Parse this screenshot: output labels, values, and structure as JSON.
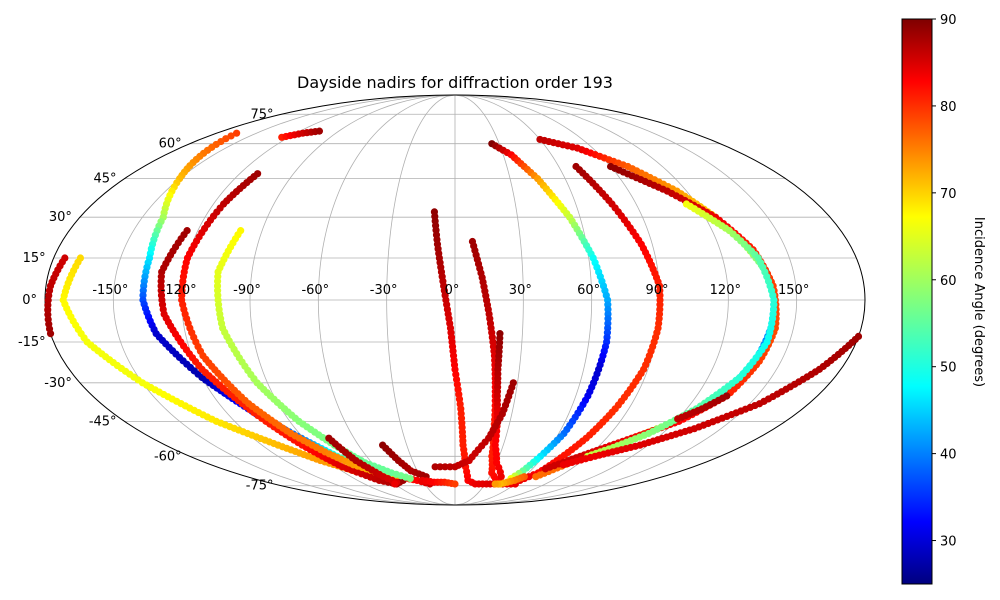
{
  "chart_data": {
    "type": "scatter",
    "projection": "mollweide",
    "title": "Dayside nadirs for diffraction order 193",
    "xlabel": "",
    "ylabel": "",
    "grid": true,
    "xlim": [
      -180,
      180
    ],
    "ylim": [
      -90,
      90
    ],
    "lon_ticks": [
      -150,
      -120,
      -90,
      -60,
      -30,
      0,
      30,
      60,
      90,
      120,
      150
    ],
    "lon_tick_labels": [
      "-150°",
      "-120°",
      "-90°",
      "-60°",
      "-30°",
      "0°",
      "30°",
      "60°",
      "90°",
      "120°",
      "150°"
    ],
    "lat_ticks": [
      -75,
      -60,
      -45,
      -30,
      -15,
      0,
      15,
      30,
      45,
      60,
      75
    ],
    "lat_tick_labels": [
      "-75°",
      "-60°",
      "-45°",
      "-30°",
      "-15°",
      "0°",
      "15°",
      "30°",
      "45°",
      "60°",
      "75°"
    ],
    "colorbar": {
      "label": "Incidence Angle (degrees)",
      "min": 25,
      "max": 90,
      "ticks": [
        30,
        40,
        50,
        60,
        70,
        80,
        90
      ],
      "colormap": "jet"
    },
    "tracks": [
      {
        "points": [
          [
            -165,
            65,
            78
          ],
          [
            -150,
            45,
            70
          ],
          [
            -140,
            30,
            60
          ],
          [
            -137,
            15,
            48
          ],
          [
            -137,
            0,
            38
          ],
          [
            -133,
            -12,
            30
          ],
          [
            -120,
            -28,
            28
          ],
          [
            -105,
            -42,
            35
          ],
          [
            -90,
            -53,
            42
          ],
          [
            -80,
            -60,
            52
          ],
          [
            -72,
            -64,
            60
          ],
          [
            -65,
            -66,
            70
          ],
          [
            -50,
            -70,
            78
          ],
          [
            -35,
            -72,
            82
          ],
          [
            -25,
            -74,
            85
          ]
        ]
      },
      {
        "points": [
          [
            -180,
            -12,
            88
          ],
          [
            -178,
            5,
            86
          ],
          [
            -175,
            15,
            85
          ]
        ]
      },
      {
        "points": [
          [
            -168,
            15,
            68
          ],
          [
            -172,
            0,
            66
          ],
          [
            -165,
            -15,
            65
          ],
          [
            -150,
            -30,
            65
          ],
          [
            -130,
            -45,
            67
          ],
          [
            -110,
            -55,
            70
          ],
          [
            -95,
            -62,
            72
          ],
          [
            -80,
            -67,
            72
          ],
          [
            -60,
            -70,
            71
          ],
          [
            -50,
            -71,
            70
          ]
        ]
      },
      {
        "points": [
          [
            -125,
            25,
            88
          ],
          [
            -130,
            10,
            87
          ],
          [
            -128,
            -5,
            84
          ],
          [
            -118,
            -25,
            80
          ],
          [
            -103,
            -45,
            80
          ],
          [
            -95,
            -55,
            81
          ],
          [
            -85,
            -65,
            84
          ],
          [
            -70,
            -72,
            86
          ],
          [
            -58,
            -74,
            87
          ],
          [
            -48,
            -72,
            88
          ]
        ]
      },
      {
        "points": [
          [
            -110,
            47,
            88
          ],
          [
            -115,
            35,
            86
          ],
          [
            -120,
            15,
            82
          ],
          [
            -120,
            0,
            80
          ],
          [
            -115,
            -20,
            78
          ],
          [
            -105,
            -38,
            76
          ],
          [
            -95,
            -50,
            75
          ],
          [
            -85,
            -58,
            74
          ],
          [
            -75,
            -64,
            72
          ],
          [
            -62,
            -68,
            70
          ],
          [
            -55,
            -70,
            69
          ]
        ]
      },
      {
        "points": [
          [
            -100,
            25,
            66
          ],
          [
            -105,
            10,
            64
          ],
          [
            -103,
            -10,
            62
          ],
          [
            -95,
            -30,
            60
          ],
          [
            -85,
            -45,
            58
          ],
          [
            -75,
            -55,
            57
          ],
          [
            -65,
            -63,
            56
          ],
          [
            -52,
            -68,
            56
          ],
          [
            -40,
            -71,
            57
          ]
        ]
      },
      {
        "points": [
          [
            -125,
            63,
            80
          ],
          [
            -115,
            65,
            85
          ],
          [
            -105,
            66,
            88
          ]
        ]
      },
      {
        "points": [
          [
            -75,
            -52,
            88
          ],
          [
            -70,
            -62,
            87
          ],
          [
            -62,
            -70,
            85
          ],
          [
            -56,
            -73,
            84
          ],
          [
            -60,
            -74,
            83
          ]
        ]
      },
      {
        "points": [
          [
            -45,
            -55,
            89
          ],
          [
            -40,
            -62,
            88
          ],
          [
            -35,
            -67,
            87
          ],
          [
            -25,
            -70,
            88
          ]
        ]
      },
      {
        "points": [
          [
            -10,
            32,
            89
          ],
          [
            -8,
            20,
            88
          ],
          [
            -5,
            5,
            86
          ],
          [
            -2,
            -10,
            84
          ],
          [
            0,
            -25,
            82
          ],
          [
            3,
            -40,
            80
          ],
          [
            5,
            -55,
            80
          ],
          [
            8,
            -65,
            81
          ],
          [
            12,
            -72,
            82
          ],
          [
            20,
            -74,
            83
          ],
          [
            35,
            -74,
            84
          ],
          [
            60,
            -74,
            84
          ]
        ]
      },
      {
        "points": [
          [
            8,
            21,
            88
          ],
          [
            12,
            8,
            87
          ],
          [
            15,
            -5,
            86
          ],
          [
            18,
            -20,
            84
          ],
          [
            20,
            -35,
            82
          ],
          [
            22,
            -48,
            80
          ],
          [
            25,
            -60,
            80
          ],
          [
            30,
            -68,
            81
          ],
          [
            40,
            -73,
            82
          ],
          [
            60,
            -74,
            83
          ]
        ]
      },
      {
        "points": [
          [
            20,
            -12,
            89
          ],
          [
            20,
            -25,
            87
          ],
          [
            21,
            -35,
            85
          ],
          [
            23,
            -45,
            83
          ],
          [
            25,
            -55,
            82
          ],
          [
            30,
            -63,
            82
          ],
          [
            40,
            -70,
            83
          ]
        ]
      },
      {
        "points": [
          [
            -15,
            -65,
            87
          ],
          [
            0,
            -65,
            86
          ],
          [
            10,
            -62,
            85
          ],
          [
            20,
            -52,
            86
          ],
          [
            25,
            -42,
            87
          ],
          [
            28,
            -30,
            88
          ]
        ]
      },
      {
        "points": [
          [
            -30,
            -72,
            83
          ],
          [
            -20,
            -73,
            82
          ],
          [
            -10,
            -73,
            80
          ],
          [
            0,
            -74,
            78
          ]
        ]
      },
      {
        "points": [
          [
            25,
            60,
            90
          ],
          [
            35,
            55,
            82
          ],
          [
            45,
            45,
            72
          ],
          [
            55,
            30,
            62
          ],
          [
            62,
            15,
            50
          ],
          [
            67,
            0,
            44
          ],
          [
            68,
            -15,
            36
          ],
          [
            67,
            -25,
            30
          ],
          [
            66,
            -35,
            32
          ],
          [
            63,
            -50,
            40
          ],
          [
            58,
            -60,
            48
          ],
          [
            54,
            -67,
            56
          ],
          [
            50,
            -71,
            65
          ]
        ]
      },
      {
        "points": [
          [
            70,
            50,
            88
          ],
          [
            78,
            35,
            85
          ],
          [
            85,
            20,
            82
          ],
          [
            90,
            5,
            80
          ],
          [
            90,
            -10,
            79
          ],
          [
            88,
            -25,
            79
          ],
          [
            83,
            -40,
            79
          ],
          [
            78,
            -52,
            80
          ],
          [
            72,
            -62,
            81
          ],
          [
            68,
            -68,
            82
          ],
          [
            60,
            -72,
            83
          ]
        ]
      },
      {
        "points": [
          [
            60,
            62,
            86
          ],
          [
            80,
            58,
            84
          ],
          [
            100,
            50,
            76
          ],
          [
            115,
            40,
            72
          ],
          [
            125,
            30,
            68
          ],
          [
            132,
            20,
            62
          ],
          [
            138,
            10,
            55
          ],
          [
            140,
            0,
            48
          ],
          [
            140,
            -10,
            43
          ],
          [
            138,
            -22,
            40
          ],
          [
            132,
            -35,
            50
          ],
          [
            120,
            -45,
            60
          ],
          [
            100,
            -55,
            70
          ],
          [
            85,
            -62,
            75
          ],
          [
            70,
            -70,
            75
          ]
        ]
      },
      {
        "points": [
          [
            90,
            50,
            89
          ],
          [
            110,
            40,
            86
          ],
          [
            125,
            30,
            83
          ],
          [
            135,
            18,
            80
          ],
          [
            140,
            5,
            78
          ],
          [
            142,
            -10,
            77
          ],
          [
            140,
            -22,
            78
          ],
          [
            135,
            -35,
            80
          ],
          [
            122,
            -45,
            82
          ],
          [
            105,
            -52,
            83
          ],
          [
            90,
            -58,
            84
          ],
          [
            80,
            -62,
            85
          ],
          [
            70,
            -66,
            85
          ]
        ]
      },
      {
        "points": [
          [
            115,
            35,
            65
          ],
          [
            128,
            25,
            60
          ],
          [
            136,
            15,
            55
          ],
          [
            140,
            0,
            52
          ],
          [
            140,
            -15,
            50
          ],
          [
            135,
            -28,
            52
          ],
          [
            125,
            -40,
            55
          ],
          [
            112,
            -50,
            58
          ],
          [
            100,
            -56,
            60
          ],
          [
            90,
            -60,
            62
          ]
        ]
      },
      {
        "points": [
          [
            180,
            -13,
            88
          ],
          [
            170,
            -25,
            87
          ],
          [
            155,
            -38,
            86
          ],
          [
            135,
            -48,
            85
          ],
          [
            115,
            -55,
            84
          ],
          [
            95,
            -60,
            83
          ],
          [
            80,
            -64,
            83
          ]
        ]
      },
      {
        "points": [
          [
            135,
            -35,
            88
          ],
          [
            128,
            -40,
            87
          ],
          [
            120,
            -44,
            86
          ]
        ]
      },
      {
        "points": [
          [
            60,
            -70,
            76
          ],
          [
            55,
            -72,
            74
          ],
          [
            50,
            -73,
            72
          ],
          [
            45,
            -74,
            70
          ],
          [
            40,
            -74,
            72
          ]
        ]
      }
    ]
  }
}
